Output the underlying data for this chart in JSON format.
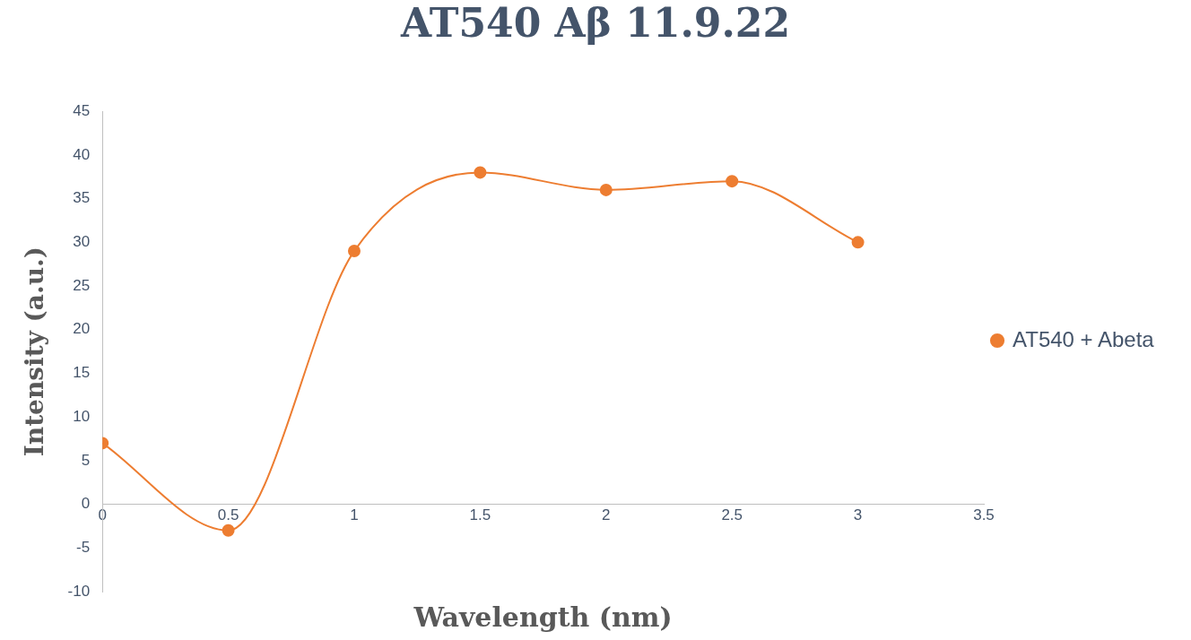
{
  "chart_data": {
    "type": "line",
    "title": "AT540 Aβ 11.9.22",
    "xlabel": "Wavelength (nm)",
    "ylabel": "Intensity (a.u.)",
    "x": [
      0,
      0.5,
      1,
      1.5,
      2,
      2.5,
      3
    ],
    "series": [
      {
        "name": "AT540 + Abeta",
        "color": "#ed7d31",
        "values": [
          7,
          -3,
          29,
          38,
          36,
          37,
          30
        ]
      }
    ],
    "xlim": [
      0,
      3.5
    ],
    "xticks": [
      0,
      0.5,
      1,
      1.5,
      2,
      2.5,
      3,
      3.5
    ],
    "ylim": [
      -10,
      45
    ],
    "yticks": [
      -10,
      -5,
      0,
      5,
      10,
      15,
      20,
      25,
      30,
      35,
      40,
      45
    ],
    "grid": false,
    "legend": "right",
    "marker": "circle",
    "line_style": "solid"
  }
}
